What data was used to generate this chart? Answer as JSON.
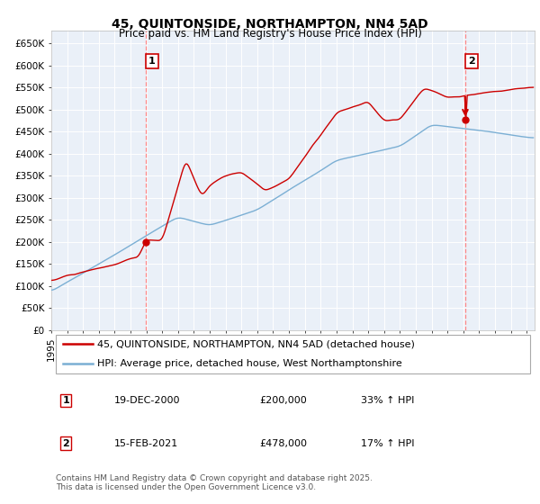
{
  "title": "45, QUINTONSIDE, NORTHAMPTON, NN4 5AD",
  "subtitle": "Price paid vs. HM Land Registry's House Price Index (HPI)",
  "ylabel_ticks": [
    "£0",
    "£50K",
    "£100K",
    "£150K",
    "£200K",
    "£250K",
    "£300K",
    "£350K",
    "£400K",
    "£450K",
    "£500K",
    "£550K",
    "£600K",
    "£650K"
  ],
  "ytick_vals": [
    0,
    50000,
    100000,
    150000,
    200000,
    250000,
    300000,
    350000,
    400000,
    450000,
    500000,
    550000,
    600000,
    650000
  ],
  "ylim": [
    0,
    680000
  ],
  "line_color_red": "#CC0000",
  "line_color_blue": "#7BAFD4",
  "marker_dot_color": "#CC0000",
  "vline_color": "#FF8888",
  "bg_color": "#EAF0F8",
  "grid_color": "#FFFFFF",
  "legend1": "45, QUINTONSIDE, NORTHAMPTON, NN4 5AD (detached house)",
  "legend2": "HPI: Average price, detached house, West Northamptonshire",
  "footer": "Contains HM Land Registry data © Crown copyright and database right 2025.\nThis data is licensed under the Open Government Licence v3.0.",
  "title_fontsize": 10,
  "subtitle_fontsize": 8.5,
  "tick_fontsize": 7.5,
  "legend_fontsize": 8
}
